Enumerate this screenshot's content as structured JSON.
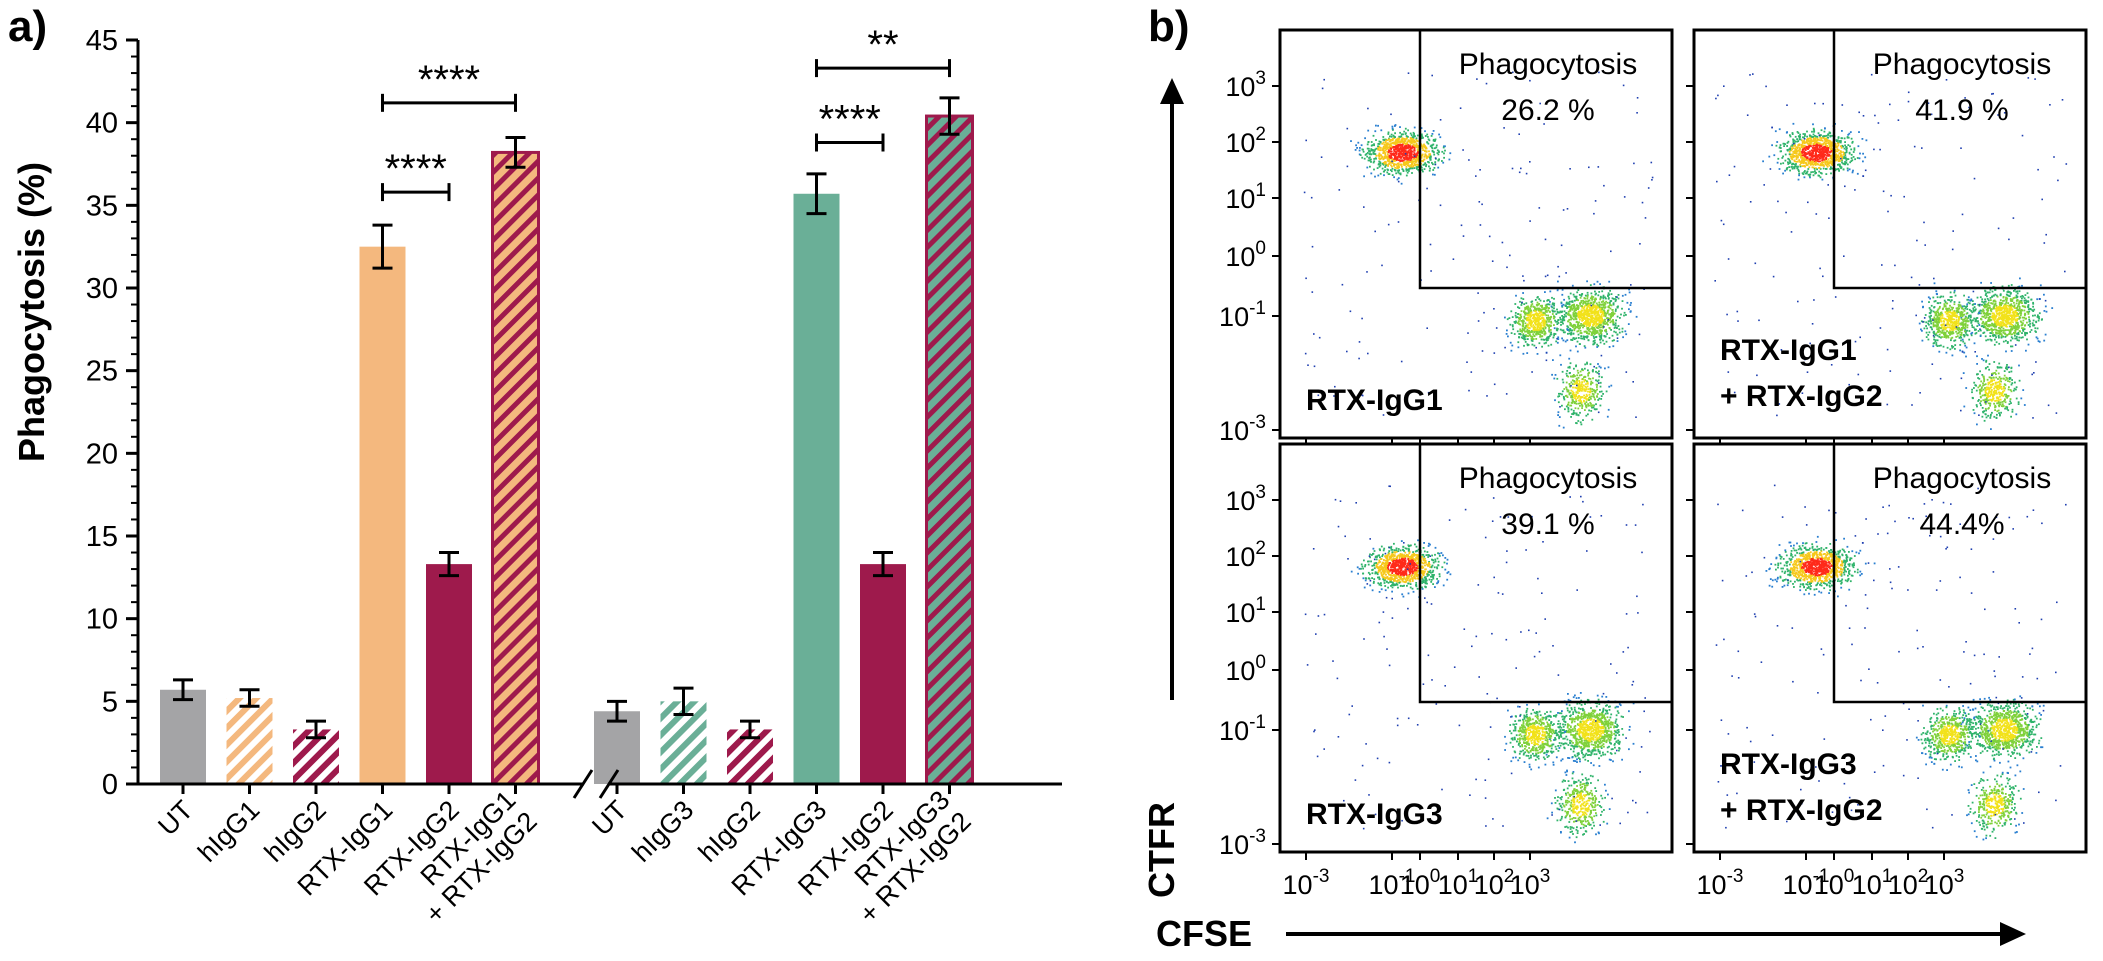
{
  "colors": {
    "gray": "#a4a4a6",
    "peach": "#f4b87e",
    "crimson": "#9e1a4c",
    "teal": "#6aaf97",
    "axis": "#000000"
  },
  "panel_a": {
    "label": "a)",
    "chart_data": {
      "type": "bar",
      "title": "",
      "xlabel": "",
      "ylabel": "Phagocytosis (%)",
      "ylim": [
        0,
        45
      ],
      "yticks": [
        "0",
        "5",
        "10",
        "15",
        "20",
        "25",
        "30",
        "35",
        "40",
        "45"
      ],
      "categories": [
        "UT",
        "hIgG1",
        "hIgG2",
        "RTX-IgG1",
        "RTX-IgG2",
        "RTX-IgG1 + RTX-IgG2",
        "UT",
        "hIgG3",
        "hIgG2",
        "RTX-IgG3",
        "RTX-IgG2",
        "RTX-IgG3 + RTX-IgG2"
      ],
      "tick_lines": [
        [
          "UT"
        ],
        [
          "hIgG1"
        ],
        [
          "hIgG2"
        ],
        [
          "RTX-IgG1"
        ],
        [
          "RTX-IgG2"
        ],
        [
          "RTX-IgG1",
          "+ RTX-IgG2"
        ],
        [
          "UT"
        ],
        [
          "hIgG3"
        ],
        [
          "hIgG2"
        ],
        [
          "RTX-IgG3"
        ],
        [
          "RTX-IgG2"
        ],
        [
          "RTX-IgG3",
          "+ RTX-IgG2"
        ]
      ],
      "values": [
        5.7,
        5.2,
        3.3,
        32.5,
        13.3,
        38.2,
        4.4,
        5.0,
        3.3,
        35.7,
        13.3,
        40.4
      ],
      "errors": [
        0.6,
        0.5,
        0.5,
        1.3,
        0.7,
        0.9,
        0.6,
        0.8,
        0.5,
        1.2,
        0.7,
        1.1
      ],
      "fills": [
        "gray",
        "peach",
        "crimson",
        "peach",
        "crimson",
        "peach",
        "gray",
        "teal",
        "crimson",
        "teal",
        "crimson",
        "teal"
      ],
      "hatched": [
        false,
        true,
        true,
        false,
        false,
        true,
        false,
        true,
        true,
        false,
        false,
        true
      ],
      "outlined": [
        false,
        false,
        false,
        false,
        false,
        true,
        false,
        false,
        false,
        false,
        false,
        true
      ],
      "axis_break_after_index": 5,
      "significance": [
        {
          "from": 3,
          "to": 4,
          "y": 35.8,
          "label": "****"
        },
        {
          "from": 3,
          "to": 5,
          "y": 41.2,
          "label": "****"
        },
        {
          "from": 9,
          "to": 10,
          "y": 38.8,
          "label": "****"
        },
        {
          "from": 9,
          "to": 11,
          "y": 43.3,
          "label": "**"
        }
      ]
    }
  },
  "panel_b": {
    "label": "b)",
    "chart_data": {
      "type": "scatter",
      "xlabel": "CFSE",
      "ylabel": "CTFR",
      "x_scale": "log",
      "y_scale": "log",
      "xticks": [
        "10-3",
        "10-1",
        "100",
        "101",
        "102",
        "103"
      ],
      "yticks": [
        "103",
        "102",
        "101",
        "100",
        "10-1",
        "10-3"
      ],
      "gate_label": "Phagocytosis",
      "panels": [
        {
          "sample": [
            "RTX-IgG1"
          ],
          "percent": "26.2 %"
        },
        {
          "sample": [
            "RTX-IgG1",
            "+ RTX-IgG2"
          ],
          "percent": "41.9 %"
        },
        {
          "sample": [
            "RTX-IgG3"
          ],
          "percent": "39.1 %"
        },
        {
          "sample": [
            "RTX-IgG3",
            "+ RTX-IgG2"
          ],
          "percent": "44.4%"
        }
      ]
    }
  }
}
